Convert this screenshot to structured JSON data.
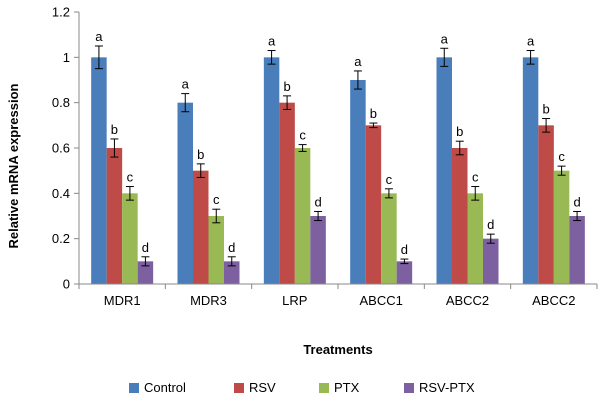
{
  "chart_data": {
    "type": "bar",
    "title": "",
    "xlabel": "Treatments",
    "ylabel": "Relative mRNA expression",
    "ylim": [
      0,
      1.2
    ],
    "yticks": [
      "0",
      "0.2",
      "0.4",
      "0.6",
      "0.8",
      "1",
      "1.2"
    ],
    "grid": false,
    "legend_position": "bottom",
    "categories": [
      "MDR1",
      "MDR3",
      "LRP",
      "ABCC1",
      "ABCC2",
      "ABCC2"
    ],
    "series": [
      {
        "name": "Control",
        "color": "#4a7ebb",
        "values": [
          1.0,
          0.8,
          1.0,
          0.9,
          1.0,
          1.0
        ],
        "errors": [
          0.05,
          0.04,
          0.03,
          0.04,
          0.04,
          0.03
        ],
        "labels": [
          "a",
          "a",
          "a",
          "a",
          "a",
          "a"
        ]
      },
      {
        "name": "RSV",
        "color": "#be4b48",
        "values": [
          0.6,
          0.5,
          0.8,
          0.7,
          0.6,
          0.7
        ],
        "errors": [
          0.04,
          0.03,
          0.03,
          0.01,
          0.03,
          0.03
        ],
        "labels": [
          "b",
          "b",
          "b",
          "b",
          "b",
          "b"
        ]
      },
      {
        "name": "PTX",
        "color": "#98b954",
        "values": [
          0.4,
          0.3,
          0.6,
          0.4,
          0.4,
          0.5
        ],
        "errors": [
          0.03,
          0.03,
          0.015,
          0.02,
          0.03,
          0.02
        ],
        "labels": [
          "c",
          "c",
          "c",
          "c",
          "c",
          "c"
        ]
      },
      {
        "name": "RSV-PTX",
        "color": "#7d60a0",
        "values": [
          0.1,
          0.1,
          0.3,
          0.1,
          0.2,
          0.3
        ],
        "errors": [
          0.02,
          0.02,
          0.02,
          0.01,
          0.02,
          0.02
        ],
        "labels": [
          "d",
          "d",
          "d",
          "d",
          "d",
          "d"
        ]
      }
    ]
  }
}
